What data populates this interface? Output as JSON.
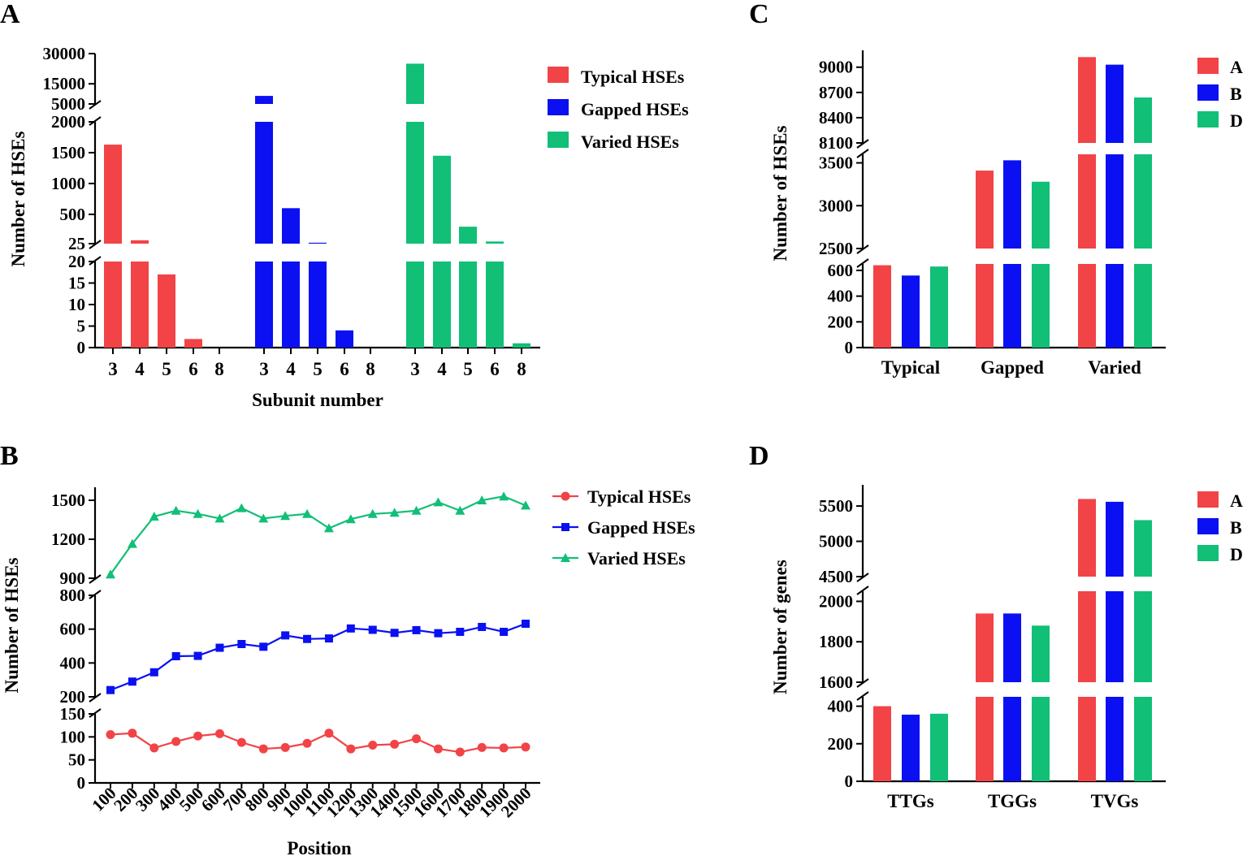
{
  "colors": {
    "red": "#f24346",
    "blue": "#0a10f2",
    "green": "#11bf77"
  },
  "chart_data": [
    {
      "panel": "A",
      "type": "bar",
      "ylabel": "Number of HSEs",
      "xlabel": "Subunit number",
      "y_segments": [
        {
          "range": [
            0,
            20
          ],
          "ticks": [
            "0",
            "5",
            "10",
            "15",
            "20"
          ]
        },
        {
          "range": [
            25,
            2000
          ],
          "ticks": [
            "25",
            "500",
            "1000",
            "1500",
            "2000"
          ]
        },
        {
          "range": [
            5000,
            30000
          ],
          "ticks": [
            "5000",
            "15000",
            "30000"
          ]
        }
      ],
      "groups": [
        {
          "series": "Typical HSEs",
          "color": "red",
          "categories": [
            "3",
            "4",
            "5",
            "6",
            "8"
          ],
          "values": [
            1630,
            80,
            17,
            2,
            0
          ]
        },
        {
          "series": "Gapped HSEs",
          "color": "blue",
          "categories": [
            "3",
            "4",
            "5",
            "6",
            "8"
          ],
          "values": [
            9000,
            600,
            40,
            4,
            0
          ]
        },
        {
          "series": "Varied HSEs",
          "color": "green",
          "categories": [
            "3",
            "4",
            "5",
            "6",
            "8"
          ],
          "values": [
            25000,
            1450,
            300,
            60,
            1
          ]
        }
      ],
      "legend": [
        "Typical HSEs",
        "Gapped HSEs",
        "Varied HSEs"
      ]
    },
    {
      "panel": "B",
      "type": "line",
      "ylabel": "Number of HSEs",
      "xlabel": "Position",
      "x": [
        "100",
        "200",
        "300",
        "400",
        "500",
        "600",
        "700",
        "800",
        "900",
        "1000",
        "1100",
        "1200",
        "1300",
        "1400",
        "1500",
        "1600",
        "1700",
        "1800",
        "1900",
        "2000"
      ],
      "y_segments": [
        {
          "range": [
            0,
            150
          ],
          "ticks": [
            "0",
            "50",
            "100",
            "150"
          ]
        },
        {
          "range": [
            200,
            800
          ],
          "ticks": [
            "200",
            "400",
            "600",
            "800"
          ]
        },
        {
          "range": [
            900,
            1600
          ],
          "ticks": [
            "900",
            "1200",
            "1500"
          ]
        }
      ],
      "series": [
        {
          "name": "Typical HSEs",
          "color": "red",
          "marker": "circle",
          "values": [
            105,
            108,
            76,
            90,
            102,
            107,
            88,
            74,
            77,
            86,
            108,
            74,
            82,
            84,
            96,
            74,
            67,
            77,
            76,
            78
          ]
        },
        {
          "name": "Gapped HSEs",
          "color": "blue",
          "marker": "square",
          "values": [
            240,
            290,
            345,
            440,
            442,
            490,
            512,
            496,
            563,
            542,
            545,
            604,
            596,
            578,
            594,
            576,
            584,
            613,
            584,
            632
          ]
        },
        {
          "name": "Varied HSEs",
          "color": "green",
          "marker": "triangle",
          "values": [
            930,
            1165,
            1375,
            1420,
            1395,
            1360,
            1440,
            1360,
            1380,
            1395,
            1285,
            1355,
            1395,
            1405,
            1420,
            1485,
            1420,
            1500,
            1530,
            1460
          ]
        }
      ]
    },
    {
      "panel": "C",
      "type": "bar",
      "ylabel": "Number of HSEs",
      "categories": [
        "Typical",
        "Gapped",
        "Varied"
      ],
      "y_segments": [
        {
          "range": [
            0,
            650
          ],
          "ticks": [
            "0",
            "200",
            "400",
            "600"
          ]
        },
        {
          "range": [
            2500,
            3600
          ],
          "ticks": [
            "2500",
            "3000",
            "3500"
          ]
        },
        {
          "range": [
            8100,
            9200
          ],
          "ticks": [
            "8100",
            "8400",
            "8700",
            "9000"
          ]
        }
      ],
      "series": [
        {
          "name": "A",
          "color": "red",
          "values": [
            640,
            3410,
            9120
          ]
        },
        {
          "name": "B",
          "color": "blue",
          "values": [
            560,
            3530,
            9030
          ]
        },
        {
          "name": "D",
          "color": "green",
          "values": [
            630,
            3280,
            8640
          ]
        }
      ]
    },
    {
      "panel": "D",
      "type": "bar",
      "ylabel": "Number of genes",
      "categories": [
        "TTGs",
        "TGGs",
        "TVGs"
      ],
      "y_segments": [
        {
          "range": [
            0,
            450
          ],
          "ticks": [
            "0",
            "200",
            "400"
          ]
        },
        {
          "range": [
            1600,
            2050
          ],
          "ticks": [
            "1600",
            "1800",
            "2000"
          ]
        },
        {
          "range": [
            4500,
            5800
          ],
          "ticks": [
            "4500",
            "5000",
            "5500"
          ]
        }
      ],
      "series": [
        {
          "name": "A",
          "color": "red",
          "values": [
            400,
            1940,
            5600
          ]
        },
        {
          "name": "B",
          "color": "blue",
          "values": [
            355,
            1940,
            5560
          ]
        },
        {
          "name": "D",
          "color": "green",
          "values": [
            360,
            1880,
            5300
          ]
        }
      ]
    }
  ]
}
